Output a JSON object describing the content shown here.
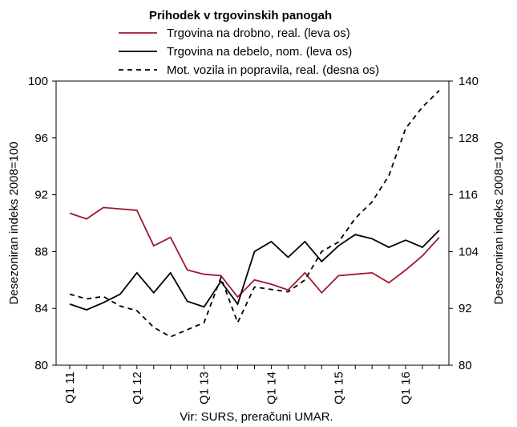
{
  "chart_data": {
    "type": "line",
    "title": "Prihodek v trgovinskih panogah",
    "source": "Vir: SURS, preračuni UMAR.",
    "ylabel_left": "Desezoniran indeks 2008=100",
    "ylabel_right": "Desezoniran indeks 2008=100",
    "ylim_left": [
      80,
      100
    ],
    "yticks_left": [
      80,
      84,
      88,
      92,
      96,
      100
    ],
    "ylim_right": [
      80,
      140
    ],
    "yticks_right": [
      80,
      92,
      104,
      116,
      128,
      140
    ],
    "x_tick_labels": [
      "Q1 11",
      "Q1 12",
      "Q1 13",
      "Q1 14",
      "Q1 15",
      "Q1 16"
    ],
    "x_tick_positions": [
      1,
      5,
      9,
      13,
      17,
      21
    ],
    "grid": false,
    "legend_position": "top-center",
    "x": [
      1,
      2,
      3,
      4,
      5,
      6,
      7,
      8,
      9,
      10,
      11,
      12,
      13,
      14,
      15,
      16,
      17,
      18,
      19,
      20,
      21,
      22,
      23
    ],
    "series": [
      {
        "name": "Trgovina na drobno, real. (leva os)",
        "axis": "left",
        "color": "#a0182e",
        "dash": "none",
        "values": [
          90.7,
          90.3,
          91.1,
          91.0,
          90.9,
          88.4,
          89.0,
          86.7,
          86.4,
          86.3,
          84.8,
          86.0,
          85.7,
          85.3,
          86.5,
          85.1,
          86.3,
          86.4,
          86.5,
          85.8,
          86.7,
          87.7,
          89.0
        ]
      },
      {
        "name": "Trgovina na debelo, nom. (leva os)",
        "axis": "left",
        "color": "#000000",
        "dash": "none",
        "values": [
          84.3,
          83.9,
          84.4,
          85.0,
          86.5,
          85.1,
          86.5,
          84.5,
          84.1,
          85.9,
          84.3,
          88.0,
          88.7,
          87.6,
          88.7,
          87.3,
          88.4,
          89.2,
          88.9,
          88.3,
          88.8,
          88.3,
          89.5
        ]
      },
      {
        "name": "Mot. vozila in popravila, real. (desna os)",
        "axis": "right",
        "color": "#000000",
        "dash": "dashed",
        "values": [
          95.0,
          94.0,
          94.5,
          92.5,
          91.5,
          88.0,
          86.0,
          87.5,
          89.0,
          98.5,
          89.0,
          96.5,
          96.0,
          95.5,
          98.0,
          104.0,
          106.0,
          111.0,
          114.5,
          120.0,
          130.0,
          134.5,
          138.0
        ]
      }
    ]
  }
}
